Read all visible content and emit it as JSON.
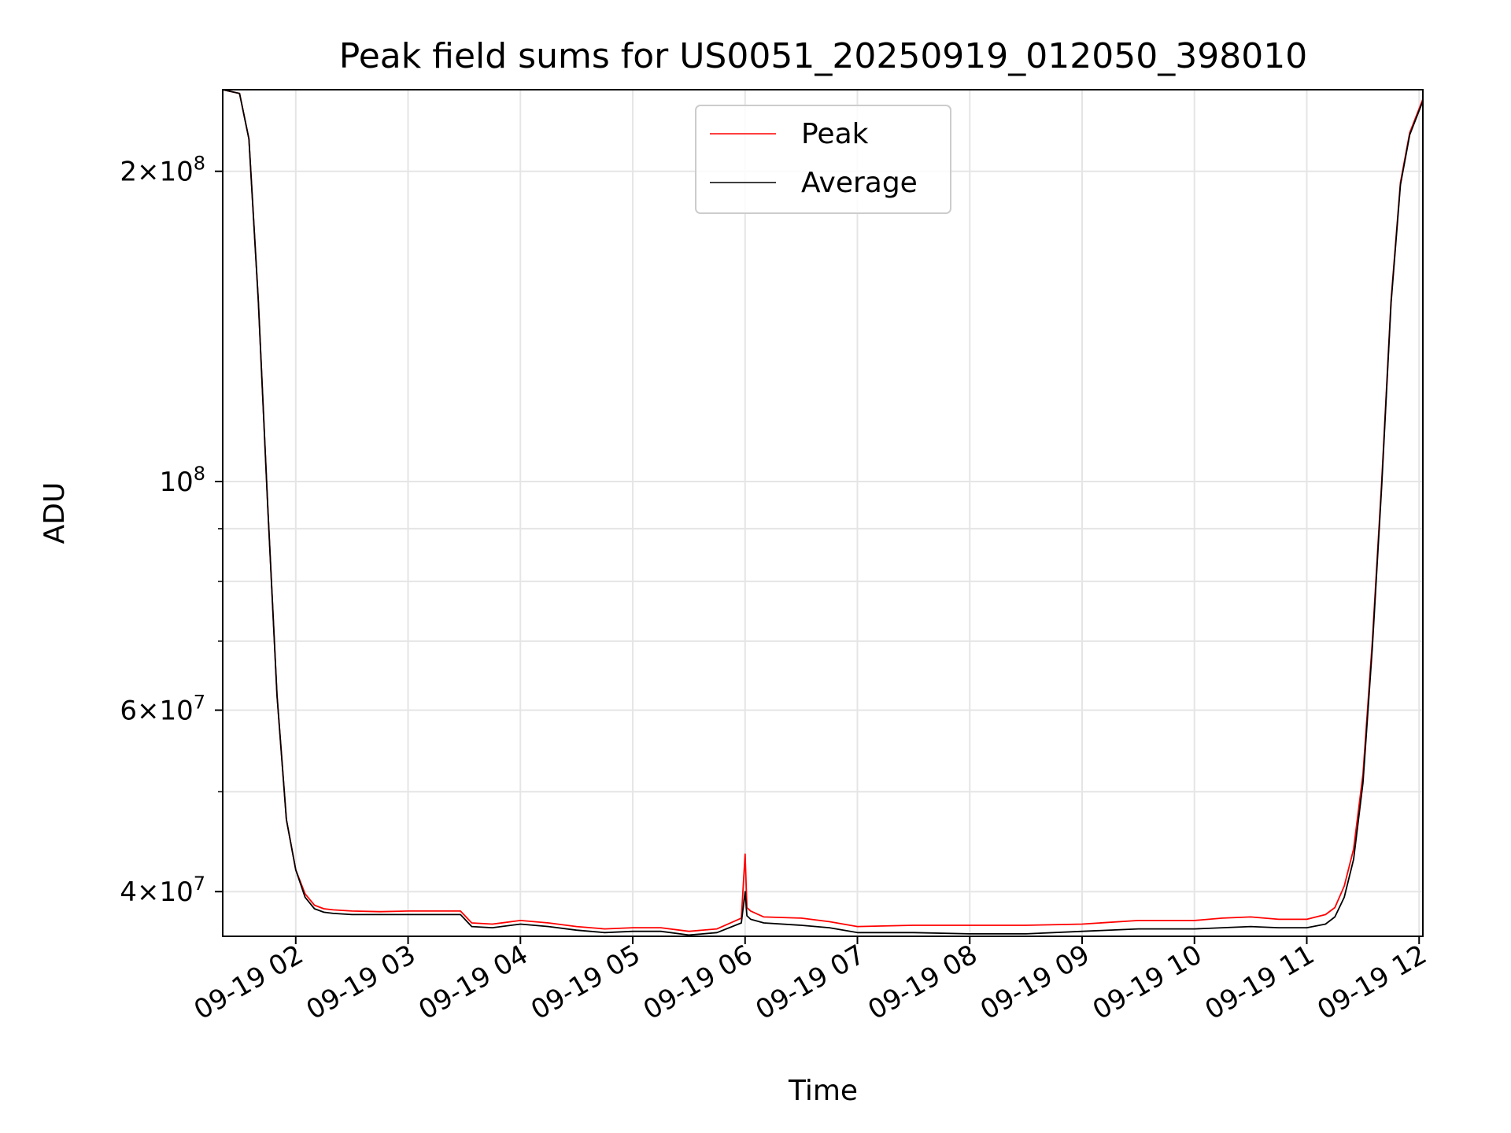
{
  "chart_data": {
    "type": "line",
    "title": "Peak field sums for US0051_20250919_012050_398010",
    "xlabel": "Time",
    "ylabel": "ADU",
    "yscale": "log",
    "ylim": [
      36200000,
      240000000
    ],
    "xlim": [
      "2025-09-19 01:21",
      "2025-09-19 12:02"
    ],
    "grid": true,
    "legend": {
      "position": "top-center",
      "entries": [
        "Peak",
        "Average"
      ]
    },
    "x_ticks": [
      "09-19 02",
      "09-19 03",
      "09-19 04",
      "09-19 05",
      "09-19 06",
      "09-19 07",
      "09-19 08",
      "09-19 09",
      "09-19 10",
      "09-19 11",
      "09-19 12"
    ],
    "x_tick_times": [
      "2025-09-19 02:00",
      "2025-09-19 03:00",
      "2025-09-19 04:00",
      "2025-09-19 05:00",
      "2025-09-19 06:00",
      "2025-09-19 07:00",
      "2025-09-19 08:00",
      "2025-09-19 09:00",
      "2025-09-19 10:00",
      "2025-09-19 11:00",
      "2025-09-19 12:00"
    ],
    "y_ticks": [
      {
        "value": 40000000,
        "mantissa": "4",
        "exponent": "7"
      },
      {
        "value": 60000000,
        "mantissa": "6",
        "exponent": "7"
      },
      {
        "value": 100000000,
        "mantissa": "",
        "exponent": "8"
      },
      {
        "value": 200000000,
        "mantissa": "2",
        "exponent": "8"
      }
    ],
    "y_minor_ticks": [
      50000000,
      70000000,
      80000000,
      90000000
    ],
    "series": [
      {
        "name": "Peak",
        "color": "#ff0000",
        "x": [
          "2025-09-19 01:21",
          "2025-09-19 01:30",
          "2025-09-19 01:35",
          "2025-09-19 01:40",
          "2025-09-19 01:45",
          "2025-09-19 01:50",
          "2025-09-19 01:55",
          "2025-09-19 02:00",
          "2025-09-19 02:05",
          "2025-09-19 02:10",
          "2025-09-19 02:15",
          "2025-09-19 02:20",
          "2025-09-19 02:30",
          "2025-09-19 02:45",
          "2025-09-19 03:00",
          "2025-09-19 03:15",
          "2025-09-19 03:28",
          "2025-09-19 03:34",
          "2025-09-19 03:45",
          "2025-09-19 04:00",
          "2025-09-19 04:15",
          "2025-09-19 04:30",
          "2025-09-19 04:45",
          "2025-09-19 05:00",
          "2025-09-19 05:15",
          "2025-09-19 05:30",
          "2025-09-19 05:45",
          "2025-09-19 05:58",
          "2025-09-19 06:00",
          "2025-09-19 06:01",
          "2025-09-19 06:03",
          "2025-09-19 06:10",
          "2025-09-19 06:30",
          "2025-09-19 06:45",
          "2025-09-19 07:00",
          "2025-09-19 07:30",
          "2025-09-19 08:00",
          "2025-09-19 08:30",
          "2025-09-19 09:00",
          "2025-09-19 09:30",
          "2025-09-19 10:00",
          "2025-09-19 10:15",
          "2025-09-19 10:30",
          "2025-09-19 10:45",
          "2025-09-19 11:00",
          "2025-09-19 11:10",
          "2025-09-19 11:15",
          "2025-09-19 11:20",
          "2025-09-19 11:25",
          "2025-09-19 11:30",
          "2025-09-19 11:35",
          "2025-09-19 11:40",
          "2025-09-19 11:45",
          "2025-09-19 11:50",
          "2025-09-19 11:55",
          "2025-09-19 12:02"
        ],
        "values": [
          240000000,
          238000000,
          215000000,
          150000000,
          95000000,
          62000000,
          47000000,
          42000000,
          39800000,
          38800000,
          38500000,
          38400000,
          38300000,
          38250000,
          38300000,
          38300000,
          38300000,
          37300000,
          37200000,
          37500000,
          37300000,
          37000000,
          36800000,
          36900000,
          36900000,
          36600000,
          36800000,
          37700000,
          43500000,
          38600000,
          38300000,
          37800000,
          37700000,
          37400000,
          37000000,
          37100000,
          37100000,
          37100000,
          37200000,
          37500000,
          37500000,
          37700000,
          37800000,
          37600000,
          37600000,
          38000000,
          38600000,
          40500000,
          44000000,
          52000000,
          70000000,
          100000000,
          150000000,
          195000000,
          218000000,
          235000000
        ]
      },
      {
        "name": "Average",
        "color": "#000000",
        "x": [
          "2025-09-19 01:21",
          "2025-09-19 01:30",
          "2025-09-19 01:35",
          "2025-09-19 01:40",
          "2025-09-19 01:45",
          "2025-09-19 01:50",
          "2025-09-19 01:55",
          "2025-09-19 02:00",
          "2025-09-19 02:05",
          "2025-09-19 02:10",
          "2025-09-19 02:15",
          "2025-09-19 02:20",
          "2025-09-19 02:30",
          "2025-09-19 02:45",
          "2025-09-19 03:00",
          "2025-09-19 03:15",
          "2025-09-19 03:28",
          "2025-09-19 03:34",
          "2025-09-19 03:45",
          "2025-09-19 04:00",
          "2025-09-19 04:15",
          "2025-09-19 04:30",
          "2025-09-19 04:45",
          "2025-09-19 05:00",
          "2025-09-19 05:15",
          "2025-09-19 05:30",
          "2025-09-19 05:45",
          "2025-09-19 05:58",
          "2025-09-19 06:00",
          "2025-09-19 06:01",
          "2025-09-19 06:03",
          "2025-09-19 06:10",
          "2025-09-19 06:30",
          "2025-09-19 06:45",
          "2025-09-19 07:00",
          "2025-09-19 07:30",
          "2025-09-19 08:00",
          "2025-09-19 08:30",
          "2025-09-19 09:00",
          "2025-09-19 09:30",
          "2025-09-19 10:00",
          "2025-09-19 10:15",
          "2025-09-19 10:30",
          "2025-09-19 10:45",
          "2025-09-19 11:00",
          "2025-09-19 11:10",
          "2025-09-19 11:15",
          "2025-09-19 11:20",
          "2025-09-19 11:25",
          "2025-09-19 11:30",
          "2025-09-19 11:35",
          "2025-09-19 11:40",
          "2025-09-19 11:45",
          "2025-09-19 11:50",
          "2025-09-19 11:55",
          "2025-09-19 12:02"
        ],
        "values": [
          240000000,
          238000000,
          215000000,
          150000000,
          95000000,
          62000000,
          47000000,
          42000000,
          39500000,
          38500000,
          38200000,
          38100000,
          38000000,
          38000000,
          38000000,
          38000000,
          38000000,
          37000000,
          36900000,
          37200000,
          37000000,
          36700000,
          36500000,
          36600000,
          36600000,
          36300000,
          36500000,
          37300000,
          40000000,
          37900000,
          37600000,
          37300000,
          37100000,
          36900000,
          36500000,
          36500000,
          36400000,
          36400000,
          36600000,
          36800000,
          36800000,
          36900000,
          37000000,
          36900000,
          36900000,
          37200000,
          37800000,
          39500000,
          43000000,
          51000000,
          69000000,
          99000000,
          149000000,
          194000000,
          217000000,
          234000000
        ]
      }
    ]
  }
}
